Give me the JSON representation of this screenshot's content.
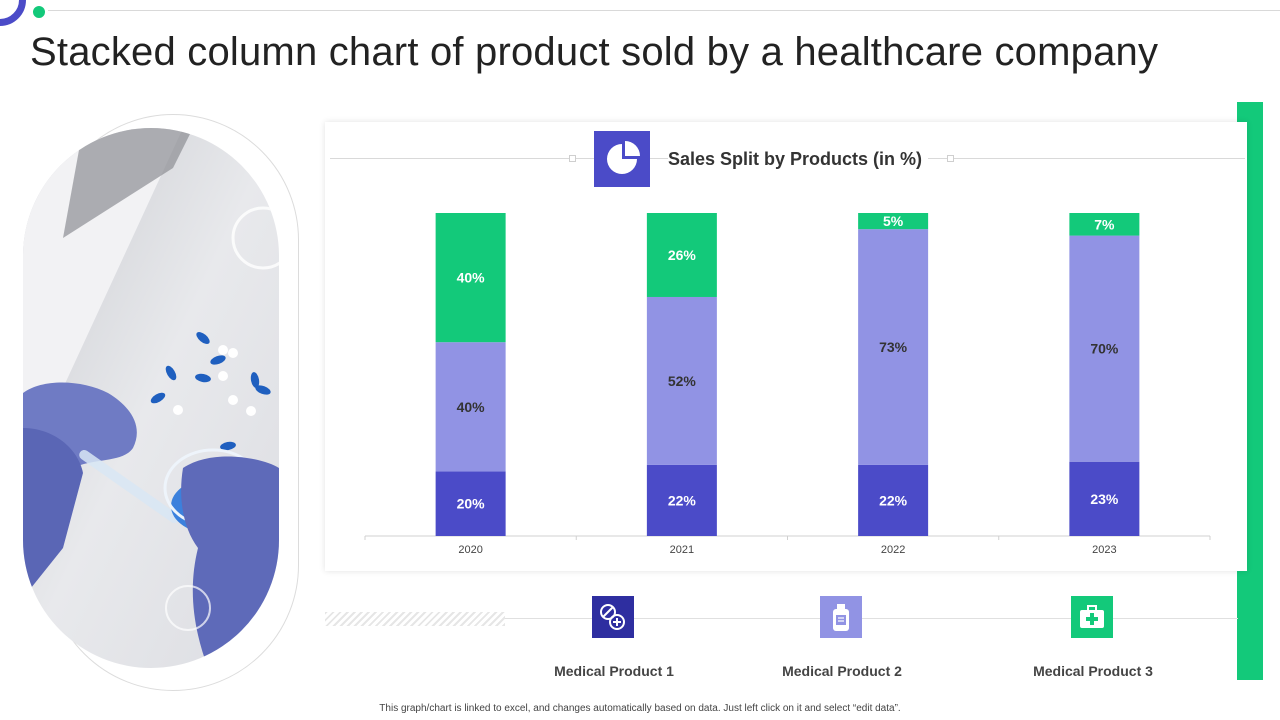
{
  "title": "Stacked column chart of product sold by a healthcare company",
  "footnote": "This graph/chart is linked to excel, and changes automatically based on data. Just left click on it and select “edit data”.",
  "colors": {
    "accent": "#4B4BC8",
    "green": "#13C97A",
    "medium": "#9193E4"
  },
  "chart_data": {
    "type": "bar",
    "stacked": true,
    "title": "Sales Split by Products (in %)",
    "categories": [
      "2020",
      "2021",
      "2022",
      "2023"
    ],
    "series": [
      {
        "name": "Medical Product 1",
        "values": [
          20,
          22,
          22,
          23
        ],
        "color": "#4B4BC8",
        "label_color": "#ffffff"
      },
      {
        "name": "Medical Product 2",
        "values": [
          40,
          52,
          73,
          70
        ],
        "color": "#9193E4",
        "label_color": "#333333"
      },
      {
        "name": "Medical Product 3",
        "values": [
          40,
          26,
          5,
          7
        ],
        "color": "#13C97A",
        "label_color": "#ffffff"
      }
    ],
    "ylim": [
      0,
      100
    ],
    "grid": false,
    "legend_position": "bottom",
    "legend_icons": [
      "pills-icon",
      "medicine-bottle-icon",
      "first-aid-kit-icon"
    ]
  }
}
